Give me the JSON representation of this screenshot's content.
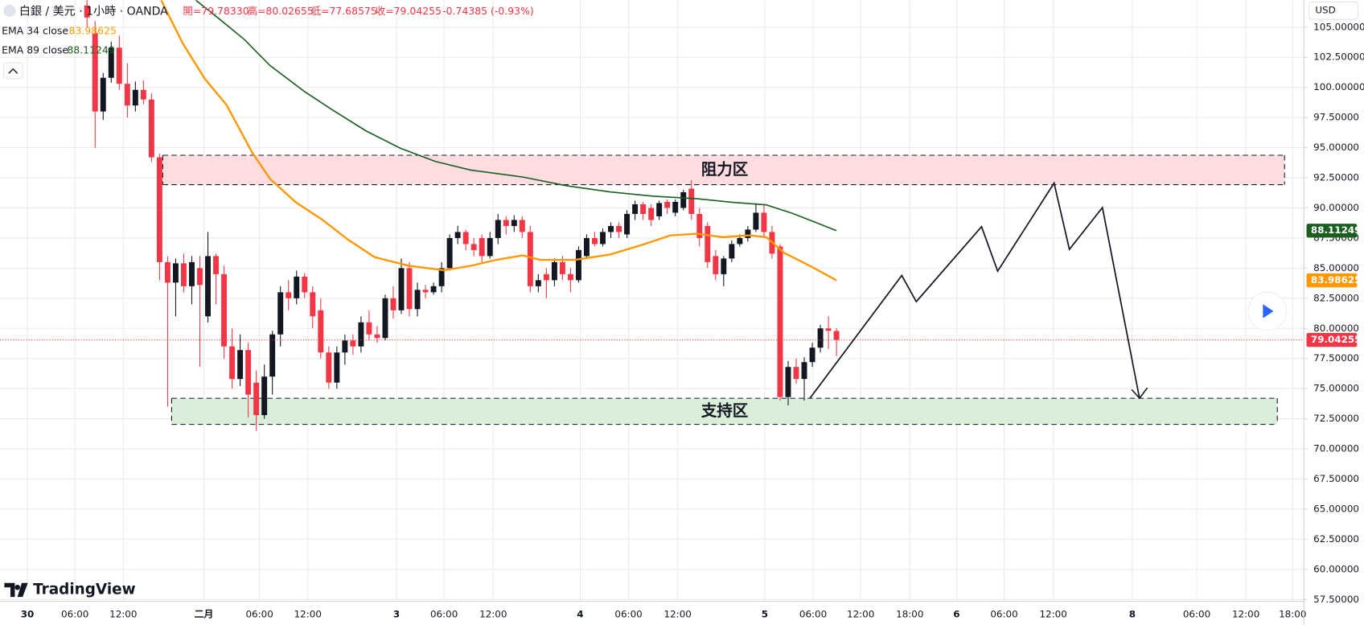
{
  "header": {
    "symbol": "白銀 / 美元 · 1小時 · OANDA",
    "open": "開=79.78330",
    "high": "高=80.02655",
    "low": "低=77.68575",
    "close": "收=79.04255",
    "change": "-0.74385 (-0.93%)",
    "currency": "USD",
    "brand": "TradingView"
  },
  "chart_data": {
    "type": "candlestick",
    "up_color": "#131722",
    "down_color": "#f23645",
    "open": [
      106.8,
      104.5,
      98.0,
      100.8,
      103.3,
      100.3,
      98.5,
      99.8,
      99.0,
      94.2,
      85.5,
      83.8,
      85.4,
      83.5,
      85.0,
      81.0,
      86.0,
      84.5,
      78.5,
      75.8,
      78.2,
      75.5,
      72.8,
      76.0,
      79.5,
      83.0,
      82.5,
      84.3,
      83.0,
      81.5,
      78.0,
      75.5,
      78.0,
      79.0,
      78.5,
      80.5,
      79.5,
      79.2,
      82.5,
      81.5,
      85.0,
      81.6,
      83.2,
      83.0,
      83.5,
      85.0,
      87.5,
      88.0,
      87.0,
      87.5,
      86.0,
      87.5,
      89.0,
      88.5,
      89.0,
      88.0,
      83.5,
      84.5,
      84.0,
      85.5,
      84.5,
      84.0,
      86.0,
      87.5,
      87.0,
      88.0,
      88.5,
      87.8,
      89.5,
      90.3,
      90.0,
      89.3,
      90.5,
      89.6,
      90.0,
      91.6,
      89.5,
      88.5,
      86.0,
      84.5,
      85.8,
      87.0,
      87.5,
      88.2,
      89.6,
      88.0,
      86.8,
      74.3,
      76.8,
      75.8,
      77.2,
      78.4,
      80.0,
      79.7833
    ],
    "high": [
      107.6,
      105.5,
      101.2,
      103.8,
      104.3,
      102.0,
      100.5,
      100.6,
      99.5,
      94.5,
      86.0,
      85.8,
      86.2,
      86.0,
      86.0,
      88.0,
      86.2,
      85.2,
      80.0,
      79.5,
      78.8,
      76.5,
      77.0,
      79.8,
      83.5,
      84.0,
      84.8,
      84.6,
      83.5,
      82.5,
      78.5,
      78.5,
      79.5,
      79.5,
      81.0,
      81.5,
      80.2,
      82.8,
      83.5,
      85.8,
      85.5,
      83.8,
      83.6,
      83.8,
      85.5,
      87.8,
      88.5,
      88.2,
      87.5,
      87.8,
      88.0,
      89.5,
      89.3,
      89.4,
      89.3,
      88.5,
      84.5,
      85.0,
      85.8,
      86.0,
      85.0,
      86.8,
      87.8,
      88.0,
      88.3,
      88.8,
      88.8,
      89.8,
      90.6,
      90.5,
      90.3,
      90.6,
      90.7,
      90.7,
      91.5,
      92.3,
      90.0,
      88.8,
      86.5,
      86.0,
      87.3,
      87.8,
      88.5,
      90.4,
      90.3,
      88.5,
      87.0,
      77.3,
      77.5,
      77.6,
      78.8,
      80.3,
      81.0,
      80.02655
    ],
    "low": [
      105.0,
      95.0,
      97.3,
      100.4,
      99.8,
      97.5,
      98.0,
      98.6,
      93.8,
      84.0,
      73.5,
      81.0,
      83.0,
      82.0,
      76.8,
      80.5,
      82.0,
      77.5,
      75.0,
      75.2,
      72.6,
      71.5,
      72.5,
      74.5,
      78.5,
      81.5,
      82.0,
      82.5,
      80.0,
      77.5,
      75.0,
      75.0,
      77.0,
      77.8,
      78.0,
      79.0,
      78.8,
      79.0,
      80.8,
      81.2,
      81.0,
      81.0,
      82.5,
      82.8,
      83.0,
      84.8,
      87.0,
      86.5,
      86.0,
      85.5,
      85.8,
      87.0,
      87.8,
      88.0,
      87.5,
      83.0,
      83.0,
      82.5,
      83.5,
      84.0,
      83.0,
      83.8,
      85.8,
      86.8,
      86.8,
      87.5,
      87.5,
      87.5,
      89.0,
      89.0,
      88.5,
      89.0,
      89.5,
      89.3,
      89.8,
      89.0,
      86.8,
      85.0,
      84.0,
      83.5,
      85.5,
      86.8,
      87.2,
      88.0,
      87.5,
      85.8,
      74.0,
      73.6,
      75.4,
      74.0,
      76.8,
      78.0,
      78.3,
      77.68575
    ],
    "close": [
      105.8,
      98.0,
      100.8,
      103.3,
      100.3,
      98.5,
      99.8,
      99.0,
      94.2,
      85.5,
      83.8,
      85.4,
      83.5,
      85.5,
      83.6,
      86.0,
      84.5,
      78.5,
      75.8,
      78.2,
      74.5,
      72.8,
      76.0,
      79.5,
      83.0,
      82.5,
      84.3,
      83.0,
      81.0,
      78.0,
      75.5,
      78.0,
      79.0,
      78.5,
      80.5,
      79.5,
      79.2,
      82.5,
      81.5,
      85.0,
      81.6,
      83.2,
      83.0,
      83.5,
      85.0,
      87.5,
      88.0,
      87.0,
      86.5,
      86.0,
      87.5,
      89.0,
      88.5,
      89.0,
      88.0,
      83.5,
      84.0,
      84.0,
      85.5,
      84.5,
      84.0,
      86.5,
      87.5,
      87.0,
      88.0,
      88.5,
      88.0,
      89.5,
      90.3,
      89.5,
      89.0,
      90.4,
      90.0,
      90.5,
      91.3,
      89.5,
      87.5,
      85.5,
      84.5,
      85.8,
      87.0,
      87.5,
      88.2,
      89.6,
      88.0,
      86.2,
      74.3,
      76.8,
      75.8,
      77.2,
      78.4,
      80.0,
      79.8,
      79.04255
    ],
    "series": [
      {
        "name": "EMA 34 close",
        "color": "#ff9800",
        "x": [
          9.2,
          11.9,
          14.6,
          17.3,
          20.5,
          22.7,
          25.9,
          29.2,
          32.4,
          35.7,
          40.0,
          44.3,
          47.6,
          50.8,
          54.1,
          56.2,
          60.5,
          64.9,
          69.2,
          72.4,
          75.7,
          78.9,
          82.2,
          84.3,
          86.5,
          89.7,
          93.0
        ],
        "values": [
          107.24,
          103.63,
          100.73,
          98.56,
          94.59,
          92.42,
          90.47,
          89.02,
          87.36,
          85.91,
          85.19,
          84.83,
          85.19,
          85.69,
          86.06,
          85.69,
          85.69,
          86.13,
          87.0,
          87.72,
          87.86,
          87.57,
          87.72,
          87.57,
          86.27,
          85.19,
          83.98625
        ]
      },
      {
        "name": "EMA 89 close",
        "color": "#1b5e20",
        "x": [
          13.5,
          16.2,
          19.5,
          22.7,
          27.0,
          30.3,
          34.6,
          38.9,
          43.2,
          47.6,
          54.1,
          59.5,
          64.9,
          70.3,
          75.7,
          80.0,
          84.3,
          87.6,
          93.0
        ],
        "values": [
          107.24,
          105.8,
          103.99,
          101.82,
          99.65,
          98.2,
          96.4,
          94.95,
          93.86,
          93.14,
          92.56,
          91.84,
          91.33,
          90.97,
          90.76,
          90.47,
          90.25,
          89.53,
          88.11249
        ]
      }
    ],
    "zones": [
      {
        "label": "阻力区",
        "color": "#fddde0",
        "range": [
          91.93,
          94.37
        ],
        "x": [
          9.4,
          148.6
        ]
      },
      {
        "label": "支持区",
        "color": "#d9efd9",
        "range": [
          72.03,
          74.2
        ],
        "x": [
          10.5,
          147.7
        ]
      }
    ],
    "projection": {
      "x": [
        89.7,
        101.1,
        102.9,
        111.0,
        113.0,
        120.0,
        121.9,
        126.0,
        130.6
      ],
      "values": [
        74.2,
        84.39,
        82.22,
        88.44,
        84.75,
        92.06,
        86.56,
        90.03,
        74.2
      ]
    },
    "xlim": [
      -10.8,
      151.0
    ],
    "ylim": [
      57.35,
      107.24
    ],
    "xticks": [
      {
        "value": -7.4,
        "label": "30"
      },
      {
        "value": -1.5,
        "label": "06:00"
      },
      {
        "value": 4.5,
        "label": "12:00"
      },
      {
        "value": 14.5,
        "label": "二月"
      },
      {
        "value": 21.4,
        "label": "06:00"
      },
      {
        "value": 27.4,
        "label": "12:00"
      },
      {
        "value": 38.4,
        "label": "3"
      },
      {
        "value": 44.3,
        "label": "06:00"
      },
      {
        "value": 50.4,
        "label": "12:00"
      },
      {
        "value": 61.2,
        "label": "4"
      },
      {
        "value": 67.2,
        "label": "06:00"
      },
      {
        "value": 73.3,
        "label": "12:00"
      },
      {
        "value": 84.1,
        "label": "5"
      },
      {
        "value": 90.1,
        "label": "06:00"
      },
      {
        "value": 96.0,
        "label": "12:00"
      },
      {
        "value": 102.1,
        "label": "18:00"
      },
      {
        "value": 107.9,
        "label": "6"
      },
      {
        "value": 113.8,
        "label": "06:00"
      },
      {
        "value": 119.9,
        "label": "12:00"
      },
      {
        "value": 129.7,
        "label": "8"
      },
      {
        "value": 137.7,
        "label": "06:00"
      },
      {
        "value": 143.8,
        "label": "12:00"
      },
      {
        "value": 149.6,
        "label": "18:00"
      }
    ],
    "yticks": [
      {
        "value": 57.5,
        "label": "57.50000"
      },
      {
        "value": 60,
        "label": "60.00000"
      },
      {
        "value": 62.5,
        "label": "62.50000"
      },
      {
        "value": 65,
        "label": "65.00000"
      },
      {
        "value": 67.5,
        "label": "67.50000"
      },
      {
        "value": 70,
        "label": "70.00000"
      },
      {
        "value": 72.5,
        "label": "72.50000"
      },
      {
        "value": 75,
        "label": "75.00000"
      },
      {
        "value": 77.5,
        "label": "77.50000"
      },
      {
        "value": 80,
        "label": "80.00000"
      },
      {
        "value": 82.5,
        "label": "82.50000"
      },
      {
        "value": 85,
        "label": "85.00000"
      },
      {
        "value": 87.5,
        "label": "87.50000"
      },
      {
        "value": 90,
        "label": "90.00000"
      },
      {
        "value": 92.5,
        "label": "92.50000"
      },
      {
        "value": 95,
        "label": "95.00000"
      },
      {
        "value": 97.5,
        "label": "97.50000"
      },
      {
        "value": 100,
        "label": "100.00000"
      },
      {
        "value": 102.5,
        "label": "102.50000"
      },
      {
        "value": 105,
        "label": "105.00000"
      }
    ],
    "grid": true
  }
}
